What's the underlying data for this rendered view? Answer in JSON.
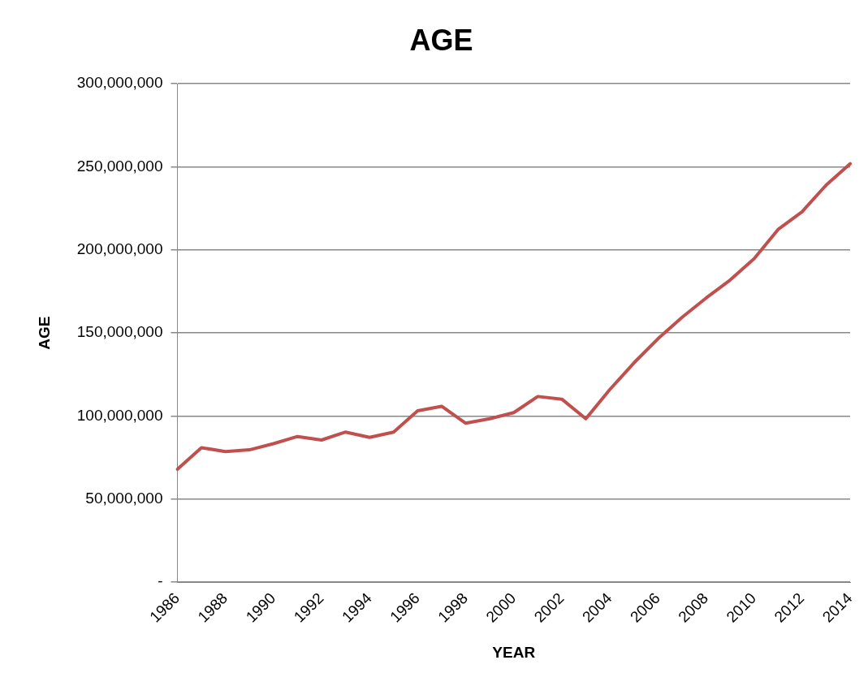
{
  "chart_data": {
    "type": "line",
    "title": "AGE",
    "xlabel": "YEAR",
    "ylabel": "AGE",
    "categories": [
      "1986",
      null,
      "1988",
      null,
      "1990",
      null,
      "1992",
      null,
      "1994",
      null,
      "1996",
      null,
      "1998",
      null,
      "2000",
      null,
      "2002",
      null,
      "2004",
      null,
      "2006",
      null,
      "2008",
      null,
      "2010",
      null,
      "2012",
      null,
      "2014"
    ],
    "series": [
      {
        "color": "#c0504d",
        "values": [
          68000000,
          81000000,
          78600000,
          79700000,
          83400000,
          87700000,
          85600000,
          90400000,
          87200000,
          90400000,
          103200000,
          105900000,
          95700000,
          98400000,
          102100000,
          111800000,
          110200000,
          98400000,
          116000000,
          132000000,
          146500000,
          159400000,
          171000000,
          181800000,
          194700000,
          212300000,
          223000000,
          239000000,
          251900000
        ]
      }
    ],
    "ylim": [
      0,
      300000000
    ],
    "yticks": [
      {
        "value": 0,
        "label": "-"
      },
      {
        "value": 50000000,
        "label": "50,000,000"
      },
      {
        "value": 100000000,
        "label": "100,000,000"
      },
      {
        "value": 150000000,
        "label": "150,000,000"
      },
      {
        "value": 200000000,
        "label": "200,000,000"
      },
      {
        "value": 250000000,
        "label": "250,000,000"
      },
      {
        "value": 300000000,
        "label": "300,000,000"
      }
    ],
    "grid": "y",
    "legend": false,
    "marker": "none",
    "line_style": "solid"
  }
}
